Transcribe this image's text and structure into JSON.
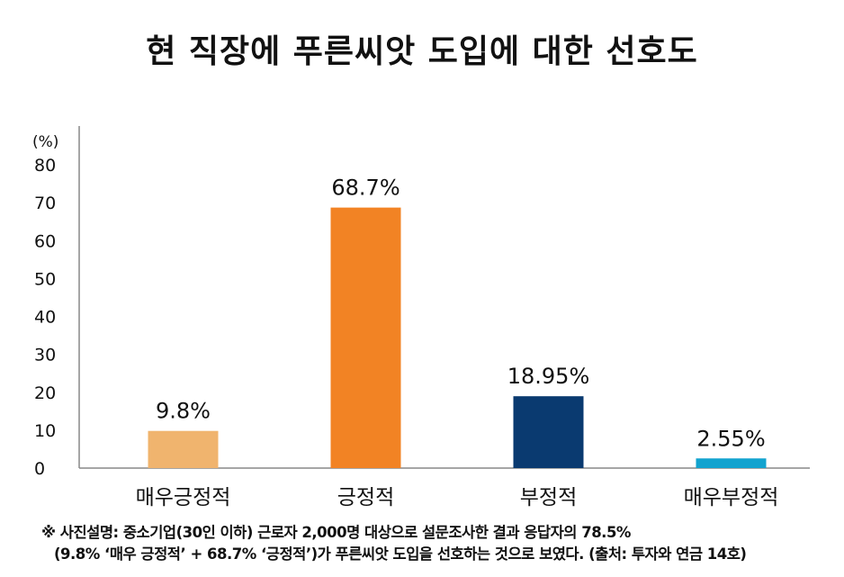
{
  "chart_data": {
    "type": "bar",
    "title": "현 직장에 푸른씨앗 도입에 대한 선호도",
    "ylabel": "(%)",
    "ylim": [
      0,
      80
    ],
    "yticks": [
      0,
      10,
      20,
      30,
      40,
      50,
      60,
      70,
      80
    ],
    "categories": [
      "매우긍정적",
      "긍정적",
      "부정적",
      "매우부정적"
    ],
    "values": [
      9.8,
      68.7,
      18.95,
      2.55
    ],
    "data_labels": [
      "9.8%",
      "68.7%",
      "18.95%",
      "2.55%"
    ],
    "colors": [
      "#F0B46E",
      "#F28324",
      "#0A3A70",
      "#12A3CF"
    ],
    "grid": false,
    "legend": "none"
  },
  "caption": {
    "line1": "※ 사진설명: 중소기업(30인 이하) 근로자 2,000명 대상으로 설문조사한 결과 응답자의 78.5%",
    "line2": "(9.8% ‘매우 긍정적’ + 68.7% ‘긍정적’)가 푸른씨앗 도입을 선호하는 것으로 보였다. (출처: 투자와 연금 14호)"
  }
}
